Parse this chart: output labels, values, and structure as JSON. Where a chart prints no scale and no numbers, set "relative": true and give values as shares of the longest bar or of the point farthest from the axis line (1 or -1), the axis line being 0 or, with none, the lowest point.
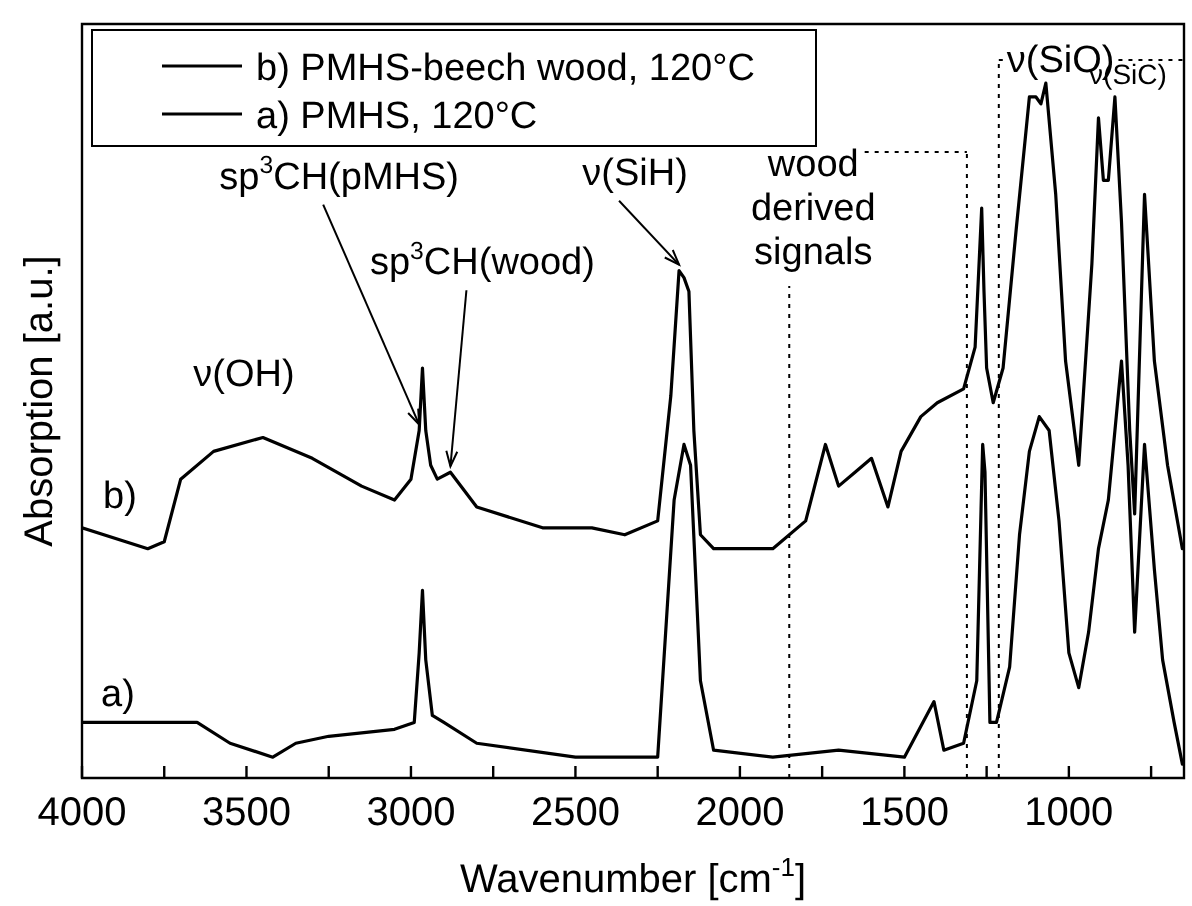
{
  "chart_data": {
    "type": "line",
    "xlabel": "Wavenumber [cm$^{-1}$]",
    "ylabel": "Absorption [a.u.]",
    "relative": true,
    "xlim": [
      4000,
      650
    ],
    "xticks": [
      4000,
      {
        "value": 3750,
        "label": null
      },
      3500,
      {
        "value": 3250,
        "label": null
      },
      3000,
      {
        "value": 2750,
        "label": null
      },
      2500,
      {
        "value": 2250,
        "label": null
      },
      2000,
      {
        "value": 1750,
        "label": null
      },
      1500,
      {
        "value": 1250,
        "label": null
      },
      1000,
      {
        "value": 750,
        "label": null
      }
    ],
    "series": [
      {
        "name": "b) PMHS-beech wood, 120°C",
        "color": "#000000",
        "x": [
          4000,
          3800,
          3750,
          3700,
          3600,
          3450,
          3300,
          3150,
          3050,
          3000,
          2975,
          2965,
          2955,
          2940,
          2920,
          2880,
          2800,
          2600,
          2450,
          2350,
          2250,
          2210,
          2185,
          2170,
          2155,
          2140,
          2120,
          2080,
          1900,
          1800,
          1740,
          1700,
          1650,
          1600,
          1550,
          1510,
          1450,
          1400,
          1320,
          1285,
          1265,
          1258,
          1250,
          1230,
          1200,
          1160,
          1120,
          1100,
          1085,
          1070,
          1040,
          1010,
          970,
          930,
          910,
          895,
          880,
          860,
          840,
          815,
          800,
          770,
          740,
          700,
          655
        ],
        "values": [
          0.36,
          0.33,
          0.34,
          0.43,
          0.47,
          0.49,
          0.46,
          0.42,
          0.4,
          0.43,
          0.5,
          0.59,
          0.5,
          0.45,
          0.43,
          0.44,
          0.39,
          0.36,
          0.36,
          0.35,
          0.37,
          0.55,
          0.73,
          0.72,
          0.7,
          0.5,
          0.35,
          0.33,
          0.33,
          0.37,
          0.48,
          0.42,
          0.44,
          0.46,
          0.39,
          0.47,
          0.52,
          0.54,
          0.56,
          0.62,
          0.82,
          0.7,
          0.59,
          0.54,
          0.59,
          0.79,
          0.98,
          0.98,
          0.97,
          1.0,
          0.84,
          0.6,
          0.45,
          0.74,
          0.95,
          0.86,
          0.86,
          0.98,
          0.8,
          0.5,
          0.38,
          0.84,
          0.6,
          0.45,
          0.33
        ]
      },
      {
        "name": "a) PMHS, 120°C",
        "color": "#000000",
        "x": [
          4000,
          3800,
          3650,
          3550,
          3420,
          3350,
          3250,
          3050,
          2990,
          2975,
          2965,
          2955,
          2935,
          2900,
          2800,
          2500,
          2250,
          2200,
          2170,
          2150,
          2120,
          2080,
          1900,
          1700,
          1500,
          1410,
          1380,
          1320,
          1280,
          1262,
          1255,
          1240,
          1220,
          1180,
          1150,
          1120,
          1090,
          1060,
          1030,
          1000,
          970,
          940,
          910,
          880,
          860,
          840,
          820,
          800,
          770,
          740,
          715,
          680,
          655
        ],
        "values": [
          0.08,
          0.08,
          0.08,
          0.05,
          0.03,
          0.05,
          0.06,
          0.07,
          0.08,
          0.18,
          0.27,
          0.17,
          0.09,
          0.08,
          0.05,
          0.03,
          0.03,
          0.4,
          0.48,
          0.45,
          0.14,
          0.04,
          0.03,
          0.04,
          0.03,
          0.11,
          0.04,
          0.05,
          0.14,
          0.48,
          0.44,
          0.08,
          0.08,
          0.16,
          0.35,
          0.47,
          0.52,
          0.5,
          0.37,
          0.18,
          0.13,
          0.21,
          0.33,
          0.4,
          0.5,
          0.6,
          0.45,
          0.21,
          0.48,
          0.3,
          0.17,
          0.08,
          0.02
        ]
      }
    ],
    "ref_lines": [
      {
        "axis": "x",
        "value": 1850,
        "label": "wood derived signals",
        "line_style": "dotted"
      },
      {
        "axis": "x",
        "value": 1310,
        "line_style": "dotted"
      },
      {
        "axis": "x",
        "value": 1213,
        "label": "ν(SiO)",
        "line_style": "dotted"
      }
    ],
    "annotations": [
      "ν(OH)",
      {
        "text": "sp$^{3}$CH(pMHS)",
        "x": 2975,
        "y": 0.5
      },
      {
        "text": "sp$^{3}$CH(wood)",
        "x": 2880,
        "y": 0.44
      },
      {
        "text": "ν(SiH)",
        "x": 2185,
        "y": 0.73
      },
      "ν(SiC)",
      "b)",
      "a)"
    ],
    "legend": "top left",
    "marker": "none",
    "line_style": "solid",
    "grid": false
  }
}
